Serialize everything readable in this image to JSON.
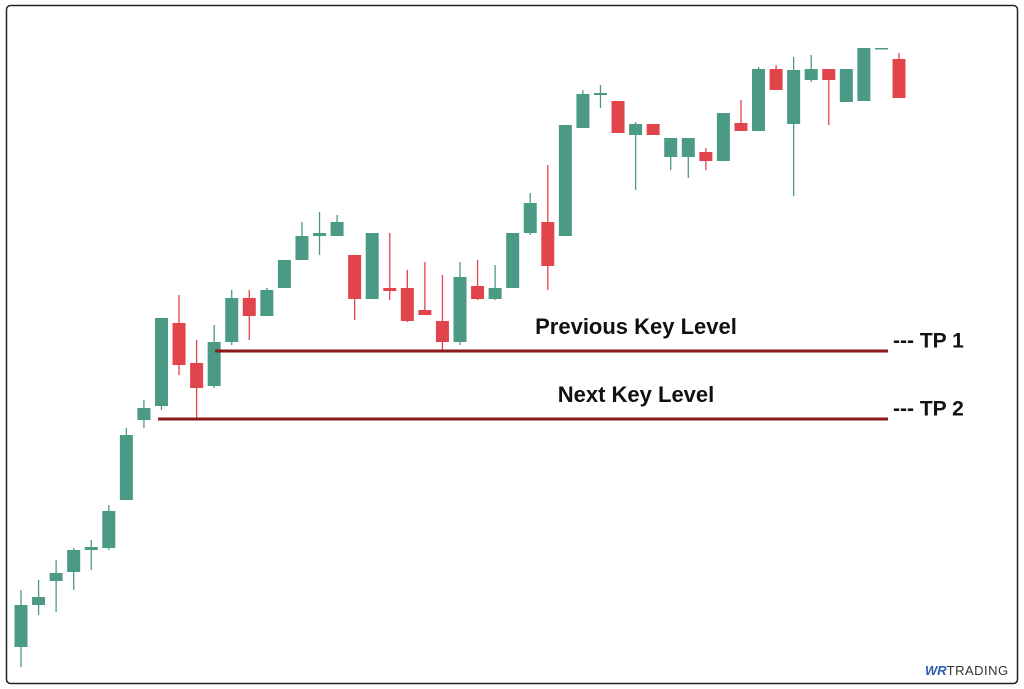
{
  "chart_data": {
    "type": "candlestick",
    "ylim": [
      0,
      680
    ],
    "up_color": "#4a9a86",
    "down_color": "#e2444b",
    "open": [
      33,
      75,
      99,
      108,
      130,
      132,
      180,
      260,
      274,
      357,
      317,
      294,
      338,
      382,
      364,
      392,
      420,
      444,
      444,
      425,
      381,
      392,
      392,
      370,
      359,
      338,
      394,
      381,
      392,
      447,
      458,
      444,
      552,
      585,
      579,
      545,
      556,
      523,
      523,
      528,
      519,
      557,
      549,
      611,
      556,
      600,
      611,
      578,
      579,
      631,
      621
    ],
    "high": [
      90,
      100,
      120,
      132,
      140,
      175,
      252,
      280,
      362,
      385,
      340,
      355,
      390,
      390,
      392,
      420,
      458,
      468,
      465,
      425,
      447,
      447,
      410,
      418,
      405,
      418,
      420,
      415,
      447,
      487,
      515,
      555,
      590,
      595,
      579,
      558,
      556,
      542,
      542,
      532,
      567,
      580,
      613,
      615,
      623,
      625,
      611,
      611,
      632,
      632,
      627
    ],
    "low": [
      13,
      65,
      68,
      90,
      110,
      130,
      180,
      252,
      270,
      305,
      262,
      292,
      335,
      340,
      364,
      392,
      420,
      425,
      444,
      360,
      381,
      380,
      358,
      365,
      330,
      335,
      380,
      380,
      392,
      445,
      390,
      444,
      552,
      572,
      547,
      490,
      545,
      510,
      502,
      510,
      519,
      549,
      549,
      590,
      484,
      598,
      555,
      578,
      579,
      631,
      582
    ],
    "close": [
      75,
      83,
      107,
      130,
      133,
      169,
      245,
      272,
      362,
      315,
      292,
      338,
      382,
      364,
      390,
      420,
      444,
      447,
      458,
      381,
      447,
      389,
      359,
      365,
      338,
      403,
      381,
      392,
      447,
      477,
      414,
      555,
      586,
      587,
      547,
      556,
      545,
      542,
      542,
      519,
      567,
      549,
      611,
      590,
      610,
      611,
      600,
      611,
      632,
      632,
      582
    ],
    "level_color": "#8b1a1a",
    "annotations": [
      {
        "text": "Previous Key Level",
        "value": 329,
        "label": "--- TP 1"
      },
      {
        "text": "Next Key Level",
        "value": 261,
        "label": "--- TP 2"
      }
    ],
    "watermark": {
      "brand": "WR",
      "text": "TRADING"
    }
  }
}
